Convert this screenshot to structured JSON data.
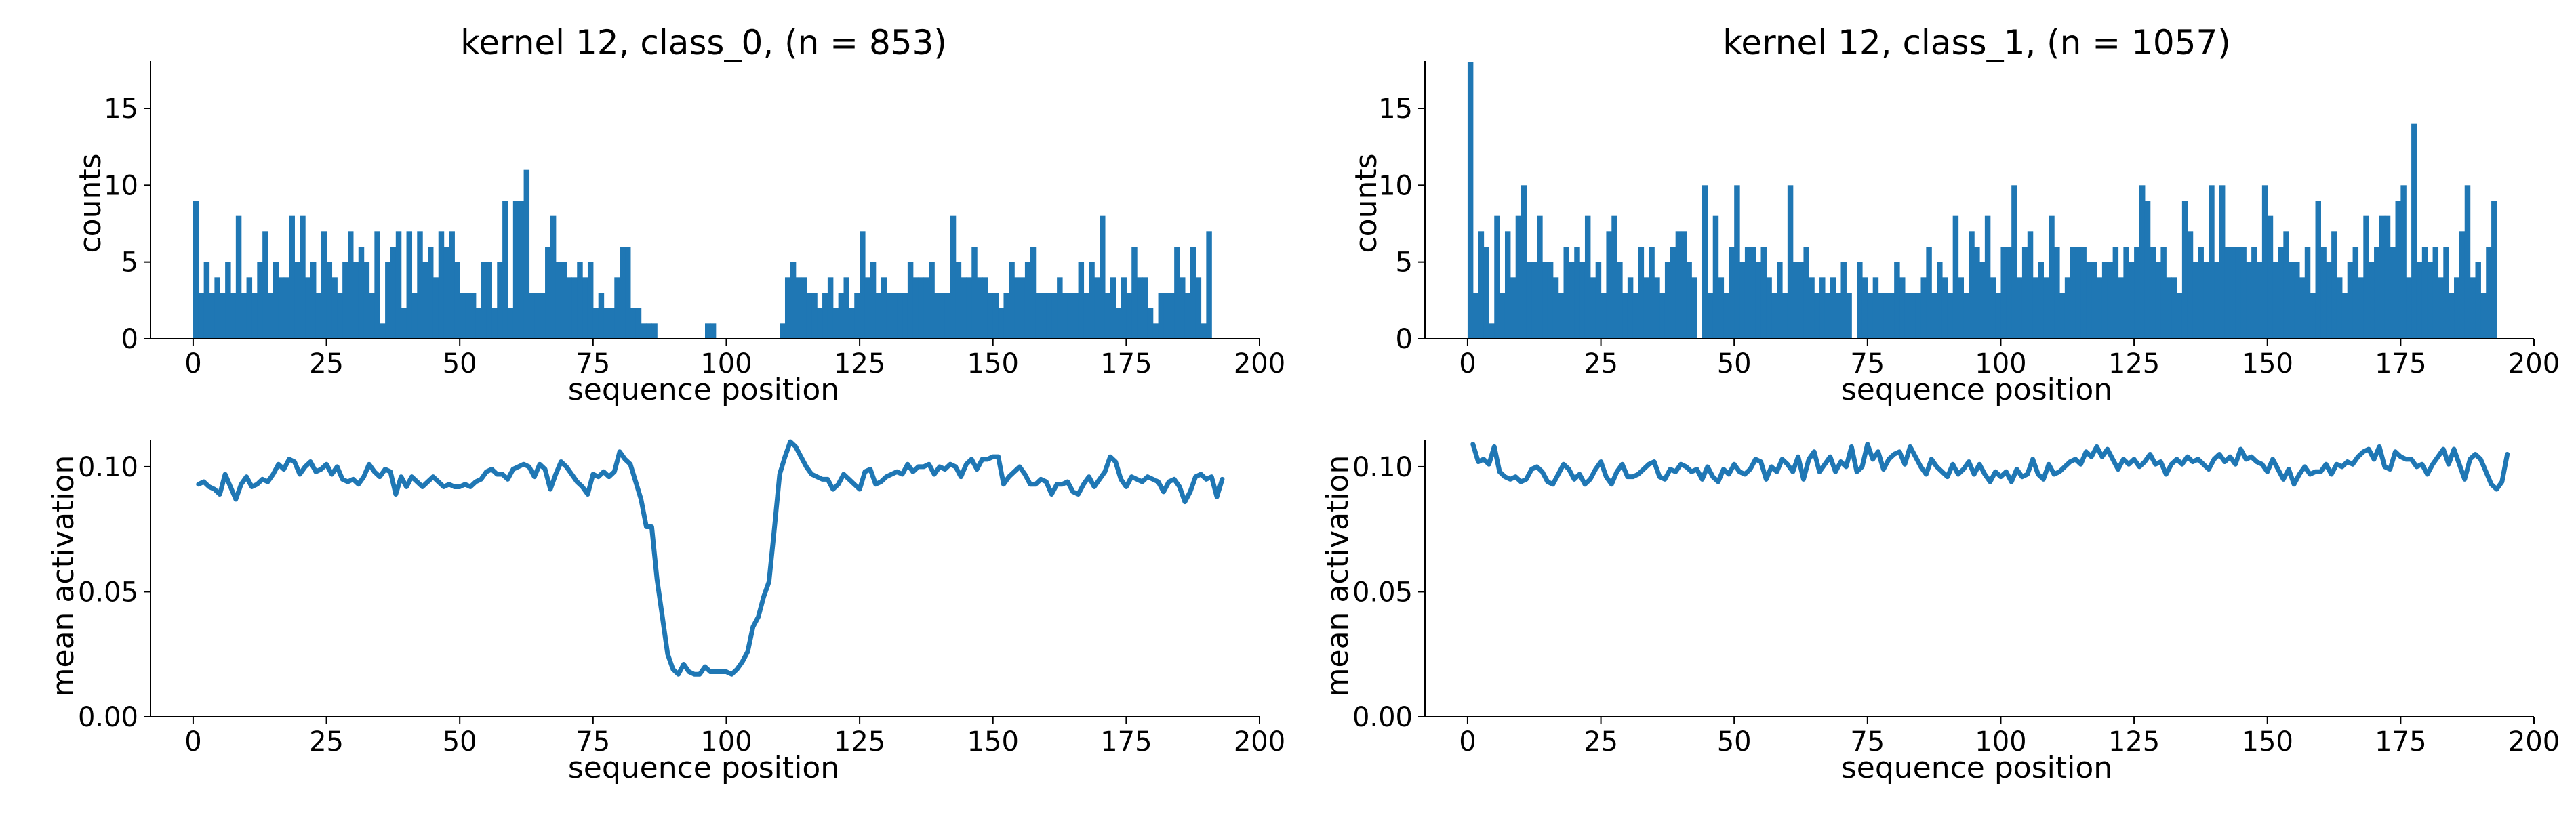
{
  "colors": {
    "series": "#1f77b4",
    "axis": "#000000",
    "background": "#ffffff"
  },
  "chart_data": [
    {
      "type": "bar",
      "panel": "class_0 histogram",
      "title": "kernel 12, class_0, (n = 853)",
      "xlabel": "sequence position",
      "ylabel": "counts",
      "xlim": [
        -8,
        200
      ],
      "ylim": [
        0,
        18
      ],
      "xticks": [
        0,
        25,
        50,
        75,
        100,
        125,
        150,
        175,
        200
      ],
      "yticks": [
        0,
        5,
        10,
        15
      ],
      "grid": false,
      "x_start": 0,
      "bin_width": 1,
      "values": [
        9,
        3,
        5,
        3,
        4,
        3,
        5,
        3,
        8,
        3,
        4,
        3,
        5,
        7,
        3,
        5,
        4,
        4,
        8,
        5,
        8,
        4,
        5,
        3,
        7,
        5,
        4,
        3,
        5,
        7,
        5,
        6,
        5,
        3,
        7,
        1,
        5,
        6,
        7,
        2,
        7,
        3,
        7,
        5,
        6,
        4,
        7,
        6,
        7,
        5,
        3,
        3,
        3,
        2,
        5,
        5,
        2,
        5,
        9,
        2,
        9,
        9,
        11,
        3,
        3,
        3,
        6,
        8,
        5,
        5,
        4,
        4,
        5,
        4,
        5,
        2,
        3,
        2,
        2,
        4,
        6,
        6,
        2,
        2,
        1,
        1,
        1,
        0,
        0,
        0,
        0,
        0,
        0,
        0,
        0,
        0,
        1,
        1,
        0,
        0,
        0,
        0,
        0,
        0,
        0,
        0,
        0,
        0,
        0,
        0,
        1,
        4,
        5,
        4,
        4,
        3,
        3,
        2,
        3,
        4,
        2,
        3,
        4,
        2,
        3,
        7,
        4,
        5,
        3,
        4,
        3,
        3,
        3,
        3,
        5,
        4,
        4,
        4,
        5,
        3,
        3,
        3,
        8,
        5,
        4,
        4,
        6,
        4,
        4,
        3,
        3,
        2,
        3,
        5,
        4,
        4,
        5,
        6,
        3,
        3,
        3,
        3,
        4,
        3,
        3,
        3,
        5,
        3,
        5,
        4,
        8,
        3,
        4,
        2,
        4,
        3,
        6,
        4,
        4,
        2,
        1,
        3,
        3,
        3,
        6,
        4,
        3,
        6,
        4,
        1,
        7
      ],
      "note_values": "193 bins starting at sequence position 0"
    },
    {
      "type": "line",
      "panel": "class_0 mean activation",
      "title": "",
      "xlabel": "sequence position",
      "ylabel": "mean activation",
      "xlim": [
        -8,
        200
      ],
      "ylim": [
        0,
        0.11
      ],
      "xticks": [
        0,
        25,
        50,
        75,
        100,
        125,
        150,
        175,
        200
      ],
      "yticks": [
        "0.00",
        "0.05",
        "0.10"
      ],
      "grid": false,
      "x_start": 1,
      "values": [
        0.093,
        0.094,
        0.092,
        0.091,
        0.089,
        0.097,
        0.092,
        0.087,
        0.093,
        0.096,
        0.092,
        0.093,
        0.095,
        0.094,
        0.097,
        0.101,
        0.099,
        0.103,
        0.102,
        0.097,
        0.1,
        0.102,
        0.098,
        0.099,
        0.101,
        0.097,
        0.1,
        0.095,
        0.094,
        0.095,
        0.093,
        0.096,
        0.101,
        0.098,
        0.096,
        0.099,
        0.098,
        0.089,
        0.096,
        0.092,
        0.096,
        0.094,
        0.092,
        0.094,
        0.096,
        0.094,
        0.092,
        0.093,
        0.092,
        0.092,
        0.093,
        0.092,
        0.094,
        0.095,
        0.098,
        0.099,
        0.097,
        0.097,
        0.095,
        0.099,
        0.1,
        0.101,
        0.1,
        0.096,
        0.101,
        0.099,
        0.091,
        0.097,
        0.102,
        0.1,
        0.097,
        0.094,
        0.092,
        0.089,
        0.097,
        0.096,
        0.098,
        0.096,
        0.098,
        0.106,
        0.103,
        0.101,
        0.094,
        0.087,
        0.076,
        0.076,
        0.055,
        0.04,
        0.025,
        0.019,
        0.017,
        0.021,
        0.018,
        0.017,
        0.017,
        0.02,
        0.018,
        0.018,
        0.018,
        0.018,
        0.017,
        0.019,
        0.022,
        0.026,
        0.036,
        0.04,
        0.048,
        0.054,
        0.075,
        0.097,
        0.104,
        0.11,
        0.108,
        0.104,
        0.1,
        0.097,
        0.096,
        0.095,
        0.095,
        0.091,
        0.093,
        0.097,
        0.095,
        0.093,
        0.091,
        0.098,
        0.099,
        0.093,
        0.094,
        0.096,
        0.097,
        0.098,
        0.097,
        0.101,
        0.098,
        0.1,
        0.1,
        0.101,
        0.097,
        0.1,
        0.099,
        0.101,
        0.1,
        0.096,
        0.101,
        0.103,
        0.099,
        0.103,
        0.103,
        0.104,
        0.104,
        0.093,
        0.096,
        0.098,
        0.1,
        0.097,
        0.093,
        0.093,
        0.095,
        0.094,
        0.089,
        0.093,
        0.093,
        0.094,
        0.09,
        0.089,
        0.093,
        0.096,
        0.092,
        0.095,
        0.098,
        0.104,
        0.102,
        0.095,
        0.092,
        0.096,
        0.095,
        0.094,
        0.096,
        0.095,
        0.094,
        0.09,
        0.094,
        0.095,
        0.092,
        0.086,
        0.09,
        0.096,
        0.097,
        0.095,
        0.096,
        0.088,
        0.095
      ],
      "note_values": "193 points starting at sequence position 1"
    },
    {
      "type": "bar",
      "panel": "class_1 histogram",
      "title": "kernel 12, class_1, (n = 1057)",
      "xlabel": "sequence position",
      "ylabel": "counts",
      "xlim": [
        -8,
        200
      ],
      "ylim": [
        0,
        18
      ],
      "xticks": [
        0,
        25,
        50,
        75,
        100,
        125,
        150,
        175,
        200
      ],
      "yticks": [
        0,
        5,
        10,
        15
      ],
      "grid": false,
      "x_start": 0,
      "bin_width": 1,
      "values": [
        18,
        3,
        7,
        6,
        1,
        8,
        3,
        7,
        4,
        8,
        10,
        5,
        5,
        8,
        5,
        5,
        4,
        3,
        6,
        5,
        6,
        5,
        8,
        4,
        5,
        3,
        7,
        8,
        5,
        3,
        4,
        3,
        6,
        4,
        6,
        4,
        3,
        5,
        6,
        7,
        7,
        5,
        4,
        0,
        10,
        3,
        8,
        4,
        3,
        6,
        10,
        5,
        6,
        6,
        5,
        6,
        4,
        3,
        5,
        3,
        10,
        5,
        5,
        6,
        4,
        3,
        4,
        3,
        4,
        3,
        5,
        3,
        0,
        5,
        4,
        3,
        4,
        3,
        3,
        3,
        5,
        4,
        3,
        3,
        3,
        4,
        6,
        3,
        5,
        4,
        3,
        8,
        4,
        3,
        7,
        6,
        5,
        8,
        4,
        3,
        6,
        6,
        10,
        4,
        6,
        7,
        4,
        5,
        4,
        8,
        6,
        3,
        4,
        6,
        6,
        6,
        5,
        5,
        4,
        5,
        5,
        6,
        4,
        6,
        5,
        6,
        10,
        9,
        6,
        5,
        6,
        4,
        4,
        3,
        9,
        7,
        5,
        6,
        5,
        10,
        5,
        10,
        6,
        6,
        6,
        6,
        5,
        6,
        5,
        10,
        8,
        5,
        6,
        7,
        5,
        5,
        4,
        6,
        3,
        9,
        6,
        5,
        7,
        4,
        3,
        5,
        6,
        4,
        8,
        5,
        6,
        8,
        8,
        6,
        9,
        10,
        4,
        14,
        5,
        6,
        5,
        6,
        4,
        6,
        3,
        4,
        7,
        10,
        4,
        5,
        3,
        6,
        9
      ],
      "note_values": "193 bins starting at sequence position 0"
    },
    {
      "type": "line",
      "panel": "class_1 mean activation",
      "title": "",
      "xlabel": "sequence position",
      "ylabel": "mean activation",
      "xlim": [
        -8,
        200
      ],
      "ylim": [
        0,
        0.11
      ],
      "xticks": [
        0,
        25,
        50,
        75,
        100,
        125,
        150,
        175,
        200
      ],
      "yticks": [
        "0.00",
        "0.05",
        "0.10"
      ],
      "grid": false,
      "x_start": 1,
      "values": [
        0.109,
        0.102,
        0.103,
        0.101,
        0.108,
        0.098,
        0.096,
        0.095,
        0.096,
        0.094,
        0.095,
        0.099,
        0.1,
        0.098,
        0.094,
        0.093,
        0.097,
        0.101,
        0.099,
        0.095,
        0.097,
        0.093,
        0.095,
        0.099,
        0.102,
        0.096,
        0.093,
        0.098,
        0.101,
        0.096,
        0.096,
        0.097,
        0.099,
        0.101,
        0.102,
        0.096,
        0.095,
        0.099,
        0.098,
        0.101,
        0.1,
        0.098,
        0.099,
        0.095,
        0.1,
        0.096,
        0.094,
        0.099,
        0.097,
        0.101,
        0.098,
        0.097,
        0.099,
        0.103,
        0.102,
        0.095,
        0.1,
        0.098,
        0.103,
        0.101,
        0.098,
        0.104,
        0.095,
        0.103,
        0.106,
        0.098,
        0.101,
        0.104,
        0.098,
        0.102,
        0.1,
        0.108,
        0.098,
        0.1,
        0.109,
        0.103,
        0.106,
        0.099,
        0.103,
        0.105,
        0.106,
        0.101,
        0.108,
        0.104,
        0.1,
        0.097,
        0.103,
        0.1,
        0.098,
        0.096,
        0.101,
        0.097,
        0.099,
        0.102,
        0.097,
        0.101,
        0.097,
        0.094,
        0.098,
        0.096,
        0.098,
        0.094,
        0.099,
        0.096,
        0.097,
        0.103,
        0.097,
        0.095,
        0.101,
        0.097,
        0.098,
        0.1,
        0.102,
        0.103,
        0.101,
        0.106,
        0.104,
        0.108,
        0.104,
        0.107,
        0.103,
        0.099,
        0.103,
        0.101,
        0.103,
        0.1,
        0.102,
        0.105,
        0.101,
        0.102,
        0.097,
        0.101,
        0.103,
        0.101,
        0.104,
        0.102,
        0.103,
        0.101,
        0.099,
        0.103,
        0.105,
        0.102,
        0.104,
        0.101,
        0.107,
        0.103,
        0.104,
        0.102,
        0.101,
        0.098,
        0.103,
        0.099,
        0.095,
        0.099,
        0.093,
        0.097,
        0.1,
        0.097,
        0.098,
        0.098,
        0.101,
        0.097,
        0.101,
        0.1,
        0.102,
        0.101,
        0.104,
        0.106,
        0.107,
        0.103,
        0.108,
        0.1,
        0.099,
        0.106,
        0.104,
        0.103,
        0.103,
        0.1,
        0.101,
        0.097,
        0.101,
        0.104,
        0.107,
        0.101,
        0.107,
        0.101,
        0.095,
        0.103,
        0.105,
        0.103,
        0.098,
        0.093,
        0.091,
        0.094,
        0.105
      ],
      "note_values": "193 points starting at sequence position 1"
    }
  ]
}
